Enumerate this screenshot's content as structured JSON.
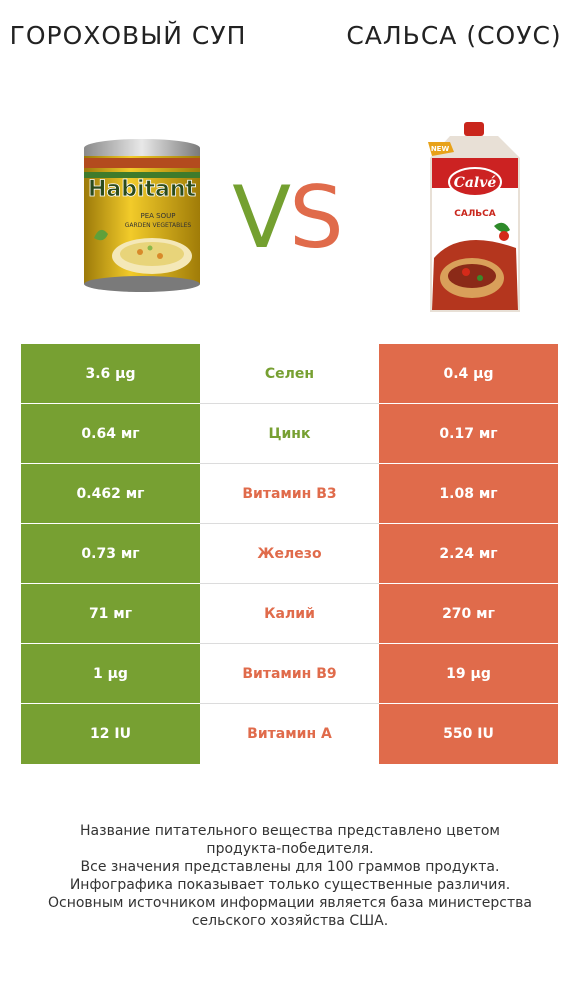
{
  "products": {
    "left": {
      "name": "Гороховый суп",
      "color": "#77a032"
    },
    "right": {
      "name": "Сальса (соус)",
      "color": "#e06b4b"
    }
  },
  "vs": {
    "v": "V",
    "s": "S"
  },
  "rows": [
    {
      "left": "3.6 µg",
      "nutrient": "Селен",
      "right": "0.4 µg",
      "winner": "left"
    },
    {
      "left": "0.64 мг",
      "nutrient": "Цинк",
      "right": "0.17 мг",
      "winner": "left"
    },
    {
      "left": "0.462 мг",
      "nutrient": "Витамин B3",
      "right": "1.08 мг",
      "winner": "right"
    },
    {
      "left": "0.73 мг",
      "nutrient": "Железо",
      "right": "2.24 мг",
      "winner": "right"
    },
    {
      "left": "71 мг",
      "nutrient": "Калий",
      "right": "270 мг",
      "winner": "right"
    },
    {
      "left": "1 µg",
      "nutrient": "Витамин B9",
      "right": "19 µg",
      "winner": "right"
    },
    {
      "left": "12 IU",
      "nutrient": "Витамин A",
      "right": "550 IU",
      "winner": "right"
    }
  ],
  "footer": {
    "line1": "Название питательного вещества представлено цветом",
    "line2": "продукта-победителя.",
    "line3": "Все значения представлены для 100 граммов продукта.",
    "line4": "Инфографика показывает только существенные различия.",
    "line5": "Основным источником информации является база министерства",
    "line6": "сельского хозяйства США."
  },
  "images": {
    "can_brand": "Habitant",
    "can_subtitle1": "PEA SOUP",
    "can_subtitle2": "GARDEN VEGETABLES",
    "pouch_badge": "NEW",
    "pouch_brand": "Calvé",
    "pouch_label": "САЛЬСА"
  }
}
